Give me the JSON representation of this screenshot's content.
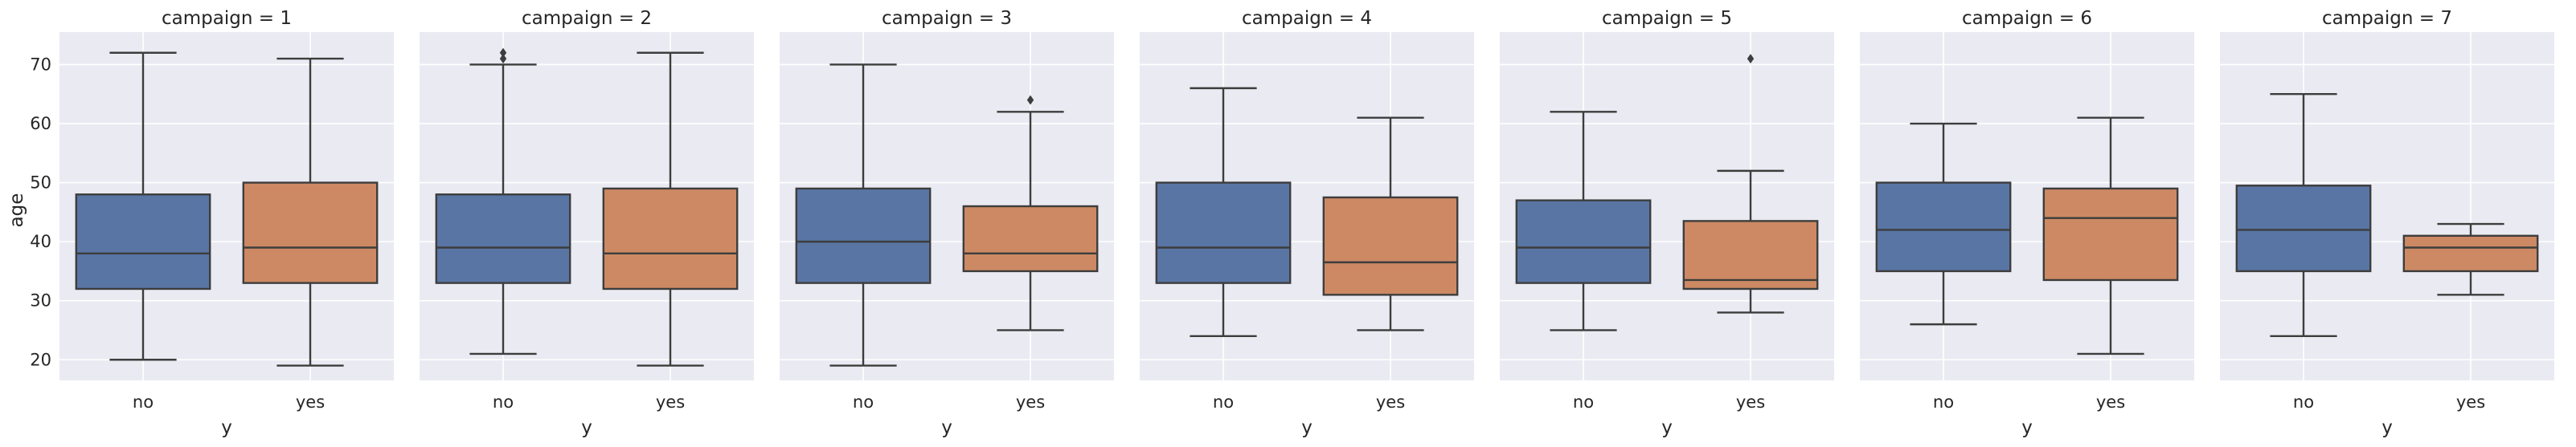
{
  "chart_data": {
    "type": "box",
    "ylabel": "age",
    "xlabel": "y",
    "ylim": [
      16.5,
      75.5
    ],
    "yticks": [
      20,
      30,
      40,
      50,
      60,
      70
    ],
    "grid": true,
    "categories": [
      "no",
      "yes"
    ],
    "colors": {
      "no": "#5875a4",
      "yes": "#cc8963",
      "background": "#eaeaf2",
      "line": "#3d3d3d"
    },
    "panels": [
      {
        "title": "campaign = 1",
        "boxes": [
          {
            "category": "no",
            "whisker_low": 20,
            "q1": 32,
            "median": 38,
            "q3": 48,
            "whisker_high": 72,
            "outliers": []
          },
          {
            "category": "yes",
            "whisker_low": 19,
            "q1": 33,
            "median": 39,
            "q3": 50,
            "whisker_high": 71,
            "outliers": []
          }
        ]
      },
      {
        "title": "campaign = 2",
        "boxes": [
          {
            "category": "no",
            "whisker_low": 21,
            "q1": 33,
            "median": 39,
            "q3": 48,
            "whisker_high": 70,
            "outliers": [
              71,
              72
            ]
          },
          {
            "category": "yes",
            "whisker_low": 19,
            "q1": 32,
            "median": 38,
            "q3": 49,
            "whisker_high": 72,
            "outliers": []
          }
        ]
      },
      {
        "title": "campaign = 3",
        "boxes": [
          {
            "category": "no",
            "whisker_low": 19,
            "q1": 33,
            "median": 40,
            "q3": 49,
            "whisker_high": 70,
            "outliers": []
          },
          {
            "category": "yes",
            "whisker_low": 25,
            "q1": 35,
            "median": 38,
            "q3": 46,
            "whisker_high": 62,
            "outliers": [
              64
            ]
          }
        ]
      },
      {
        "title": "campaign = 4",
        "boxes": [
          {
            "category": "no",
            "whisker_low": 24,
            "q1": 33,
            "median": 39,
            "q3": 50,
            "whisker_high": 66,
            "outliers": []
          },
          {
            "category": "yes",
            "whisker_low": 25,
            "q1": 31,
            "median": 36.5,
            "q3": 47.5,
            "whisker_high": 61,
            "outliers": []
          }
        ]
      },
      {
        "title": "campaign = 5",
        "boxes": [
          {
            "category": "no",
            "whisker_low": 25,
            "q1": 33,
            "median": 39,
            "q3": 47,
            "whisker_high": 62,
            "outliers": []
          },
          {
            "category": "yes",
            "whisker_low": 28,
            "q1": 32,
            "median": 33.5,
            "q3": 43.5,
            "whisker_high": 52,
            "outliers": [
              71
            ]
          }
        ]
      },
      {
        "title": "campaign = 6",
        "boxes": [
          {
            "category": "no",
            "whisker_low": 26,
            "q1": 35,
            "median": 42,
            "q3": 50,
            "whisker_high": 60,
            "outliers": []
          },
          {
            "category": "yes",
            "whisker_low": 21,
            "q1": 33.5,
            "median": 44,
            "q3": 49,
            "whisker_high": 61,
            "outliers": []
          }
        ]
      },
      {
        "title": "campaign = 7",
        "boxes": [
          {
            "category": "no",
            "whisker_low": 24,
            "q1": 35,
            "median": 42,
            "q3": 49.5,
            "whisker_high": 65,
            "outliers": []
          },
          {
            "category": "yes",
            "whisker_low": 31,
            "q1": 35,
            "median": 39,
            "q3": 41,
            "whisker_high": 43,
            "outliers": []
          }
        ]
      }
    ]
  }
}
